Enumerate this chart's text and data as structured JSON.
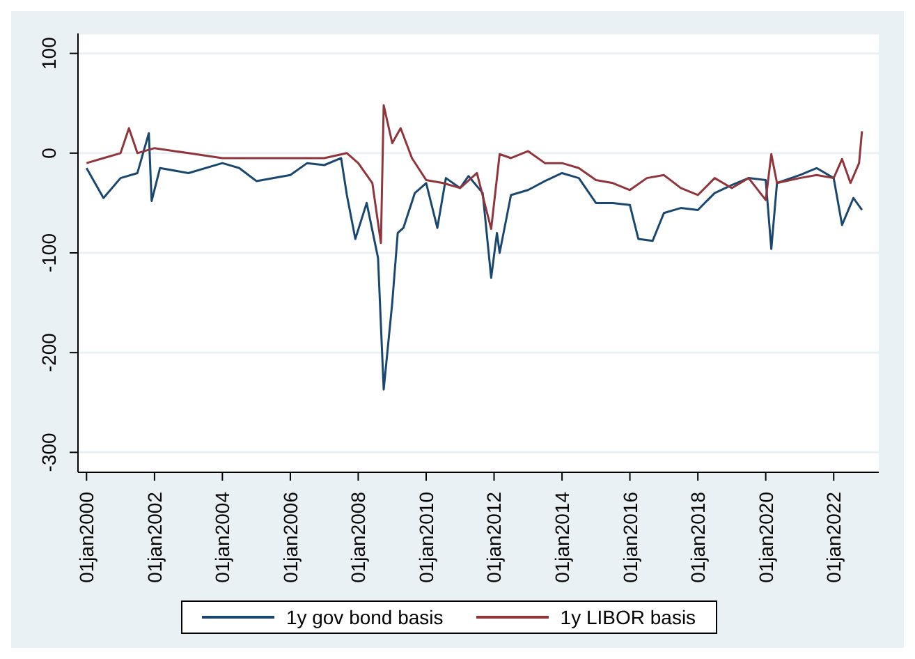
{
  "chart_data": {
    "type": "line",
    "xlim": [
      "1999-10",
      "2023-05"
    ],
    "ylim": [
      -320,
      120
    ],
    "yticks": [
      -300,
      -200,
      -100,
      0,
      100
    ],
    "xticks": [
      {
        "value": "2000-01-01",
        "label": "01jan2000"
      },
      {
        "value": "2002-01-01",
        "label": "01jan2002"
      },
      {
        "value": "2004-01-01",
        "label": "01jan2004"
      },
      {
        "value": "2006-01-01",
        "label": "01jan2006"
      },
      {
        "value": "2008-01-01",
        "label": "01jan2008"
      },
      {
        "value": "2010-01-01",
        "label": "01jan2010"
      },
      {
        "value": "2012-01-01",
        "label": "01jan2012"
      },
      {
        "value": "2014-01-01",
        "label": "01jan2014"
      },
      {
        "value": "2016-01-01",
        "label": "01jan2016"
      },
      {
        "value": "2018-01-01",
        "label": "01jan2018"
      },
      {
        "value": "2020-01-01",
        "label": "01jan2020"
      },
      {
        "value": "2022-01-01",
        "label": "01jan2022"
      }
    ],
    "grid": "y",
    "legend": "bottom",
    "marker": "none",
    "line_style": "solid",
    "series": [
      {
        "name": "1y gov bond basis",
        "color": "#1a476f",
        "x": [
          "2000-01",
          "2000-07",
          "2001-01",
          "2001-07",
          "2001-11",
          "2001-12",
          "2002-03",
          "2003-01",
          "2004-01",
          "2004-07",
          "2005-01",
          "2006-01",
          "2006-07",
          "2007-01",
          "2007-07",
          "2007-09",
          "2007-12",
          "2008-04",
          "2008-08",
          "2008-10",
          "2009-01",
          "2009-03",
          "2009-05",
          "2009-09",
          "2010-01",
          "2010-05",
          "2010-08",
          "2011-01",
          "2011-04",
          "2011-09",
          "2011-12",
          "2012-02",
          "2012-03",
          "2012-07",
          "2013-01",
          "2013-07",
          "2014-01",
          "2014-07",
          "2015-01",
          "2015-07",
          "2016-01",
          "2016-04",
          "2016-09",
          "2017-01",
          "2017-07",
          "2018-01",
          "2018-07",
          "2019-01",
          "2019-07",
          "2020-01",
          "2020-03",
          "2020-05",
          "2021-01",
          "2021-07",
          "2022-01",
          "2022-04",
          "2022-08",
          "2022-11"
        ],
        "values": [
          -15,
          -45,
          -25,
          -20,
          20,
          -48,
          -15,
          -20,
          -10,
          -15,
          -28,
          -22,
          -10,
          -12,
          -5,
          -42,
          -86,
          -50,
          -105,
          -237,
          -150,
          -80,
          -75,
          -40,
          -30,
          -75,
          -25,
          -35,
          -23,
          -40,
          -125,
          -80,
          -100,
          -42,
          -37,
          -28,
          -20,
          -25,
          -50,
          -50,
          -52,
          -86,
          -88,
          -60,
          -55,
          -57,
          -40,
          -32,
          -25,
          -27,
          -96,
          -30,
          -22,
          -15,
          -25,
          -72,
          -45,
          -57
        ]
      },
      {
        "name": "1y LIBOR basis",
        "color": "#90353b",
        "x": [
          "2000-01",
          "2000-07",
          "2001-01",
          "2001-04",
          "2001-07",
          "2002-01",
          "2003-01",
          "2004-01",
          "2005-01",
          "2006-01",
          "2007-01",
          "2007-09",
          "2008-01",
          "2008-06",
          "2008-09",
          "2008-10",
          "2009-01",
          "2009-04",
          "2009-08",
          "2010-01",
          "2010-07",
          "2011-01",
          "2011-07",
          "2011-12",
          "2012-03",
          "2012-07",
          "2013-01",
          "2013-07",
          "2014-01",
          "2014-07",
          "2015-01",
          "2015-07",
          "2016-01",
          "2016-07",
          "2017-01",
          "2017-07",
          "2018-01",
          "2018-07",
          "2019-01",
          "2019-07",
          "2020-01",
          "2020-03",
          "2020-05",
          "2021-01",
          "2021-07",
          "2022-01",
          "2022-04",
          "2022-07",
          "2022-10",
          "2022-11"
        ],
        "values": [
          -10,
          -5,
          0,
          25,
          0,
          5,
          0,
          -5,
          -5,
          -5,
          -5,
          0,
          -10,
          -30,
          -90,
          48,
          10,
          25,
          -5,
          -27,
          -30,
          -35,
          -20,
          -76,
          -1,
          -5,
          2,
          -10,
          -10,
          -15,
          -27,
          -30,
          -37,
          -25,
          -22,
          -35,
          -42,
          -25,
          -35,
          -25,
          -47,
          -1,
          -30,
          -25,
          -22,
          -25,
          -6,
          -30,
          -10,
          22
        ]
      }
    ]
  }
}
